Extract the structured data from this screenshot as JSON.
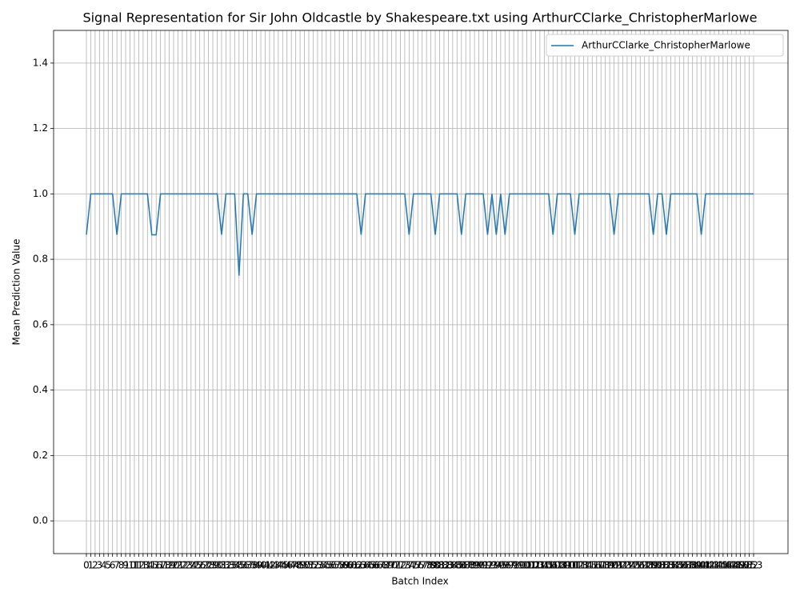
{
  "chart_data": {
    "type": "line",
    "title": "Signal Representation for Sir John Oldcastle by Shakespeare.txt using ArthurCClarke_ChristopherMarlowe",
    "x_label": "Batch Index",
    "y_label": "Mean Prediction Value",
    "x": [
      0,
      1,
      2,
      3,
      4,
      5,
      6,
      7,
      8,
      9,
      10,
      11,
      12,
      13,
      14,
      15,
      16,
      17,
      18,
      19,
      20,
      21,
      22,
      23,
      24,
      25,
      26,
      27,
      28,
      29,
      30,
      31,
      32,
      33,
      34,
      35,
      36,
      37,
      38,
      39,
      40,
      41,
      42,
      43,
      44,
      45,
      46,
      47,
      48,
      49,
      50,
      51,
      52,
      53,
      54,
      55,
      56,
      57,
      58,
      59,
      60,
      61,
      62,
      63,
      64,
      65,
      66,
      67,
      68,
      69,
      70,
      71,
      72,
      73,
      74,
      75,
      76,
      77,
      78,
      79,
      80,
      81,
      82,
      83,
      84,
      85,
      86,
      87,
      88,
      89,
      90,
      91,
      92,
      93,
      94,
      95,
      96,
      97,
      98,
      99,
      100,
      101,
      102,
      103,
      104,
      105,
      106,
      107,
      108,
      109,
      110,
      111,
      112,
      113,
      114,
      115,
      116,
      117,
      118,
      119,
      120,
      121,
      122,
      123,
      124,
      125,
      126,
      127,
      128,
      129,
      130,
      131,
      132,
      133,
      134,
      135,
      136,
      137,
      138,
      139,
      140,
      141,
      142,
      143,
      144,
      145,
      146,
      147,
      148,
      149,
      150,
      151,
      152,
      153
    ],
    "series": [
      {
        "name": "ArthurCClarke_ChristopherMarlowe",
        "color": "#1f77b4",
        "values": [
          0.875,
          1,
          1,
          1,
          1,
          1,
          1,
          0.875,
          1,
          1,
          1,
          1,
          1,
          1,
          1,
          0.875,
          0.875,
          1,
          1,
          1,
          1,
          1,
          1,
          1,
          1,
          1,
          1,
          1,
          1,
          1,
          1,
          0.875,
          1,
          1,
          1,
          0.75,
          1,
          1,
          0.875,
          1,
          1,
          1,
          1,
          1,
          1,
          1,
          1,
          1,
          1,
          1,
          1,
          1,
          1,
          1,
          1,
          1,
          1,
          1,
          1,
          1,
          1,
          1,
          1,
          0.875,
          1,
          1,
          1,
          1,
          1,
          1,
          1,
          1,
          1,
          1,
          0.875,
          1,
          1,
          1,
          1,
          1,
          0.875,
          1,
          1,
          1,
          1,
          1,
          0.875,
          1,
          1,
          1,
          1,
          1,
          0.875,
          1,
          0.875,
          1,
          0.875,
          1,
          1,
          1,
          1,
          1,
          1,
          1,
          1,
          1,
          1,
          0.875,
          1,
          1,
          1,
          1,
          0.875,
          1,
          1,
          1,
          1,
          1,
          1,
          1,
          1,
          0.875,
          1,
          1,
          1,
          1,
          1,
          1,
          1,
          1,
          0.875,
          1,
          1,
          0.875,
          1,
          1,
          1,
          1,
          1,
          1,
          1,
          0.875,
          1,
          1,
          1,
          1,
          1,
          1,
          1,
          1,
          1,
          1,
          1,
          1
        ]
      }
    ],
    "xlim": [
      -7.52,
      160.89
    ],
    "xticks": [
      0,
      1,
      2,
      3,
      4,
      5,
      6,
      7,
      8,
      9,
      10,
      11,
      12,
      13,
      14,
      15,
      16,
      17,
      18,
      19,
      20,
      21,
      22,
      23,
      24,
      25,
      26,
      27,
      28,
      29,
      30,
      31,
      32,
      33,
      34,
      35,
      36,
      37,
      38,
      39,
      40,
      41,
      42,
      43,
      44,
      45,
      46,
      47,
      48,
      49,
      50,
      51,
      52,
      53,
      54,
      55,
      56,
      57,
      58,
      59,
      60,
      61,
      62,
      63,
      64,
      65,
      66,
      67,
      68,
      69,
      70,
      71,
      72,
      73,
      74,
      75,
      76,
      77,
      78,
      79,
      80,
      81,
      82,
      83,
      84,
      85,
      86,
      87,
      88,
      89,
      90,
      91,
      92,
      93,
      94,
      95,
      96,
      97,
      98,
      99,
      100,
      101,
      102,
      103,
      104,
      105,
      106,
      107,
      108,
      109,
      110,
      111,
      112,
      113,
      114,
      115,
      116,
      117,
      118,
      119,
      120,
      121,
      122,
      123,
      124,
      125,
      126,
      127,
      128,
      129,
      130,
      131,
      132,
      133,
      134,
      135,
      136,
      137,
      138,
      139,
      140,
      141,
      142,
      143,
      144,
      145,
      146,
      147,
      148,
      149,
      150,
      151,
      152,
      153
    ],
    "ylim": [
      -0.1,
      1.5
    ],
    "yticks": [
      {
        "value": 0,
        "label": "0.0"
      },
      0.2,
      0.4,
      0.6,
      0.8,
      {
        "value": 1,
        "label": "1.0"
      },
      1.2,
      1.4
    ],
    "grid": true,
    "legend": "upper right"
  }
}
